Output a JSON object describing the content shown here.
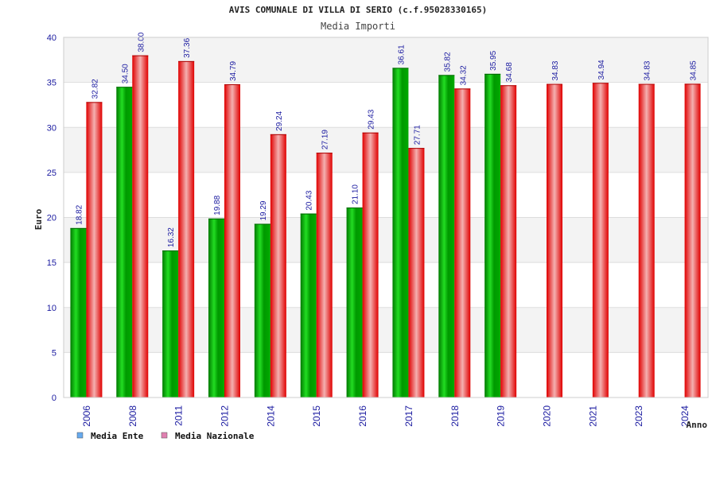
{
  "chart_data": {
    "type": "bar",
    "title": "AVIS COMUNALE DI VILLA DI SERIO (c.f.95028330165)",
    "subtitle": "Media Importi",
    "xlabel": "Anno",
    "ylabel": "Euro",
    "ylim": [
      0,
      40
    ],
    "yticks": [
      0,
      5,
      10,
      15,
      20,
      25,
      30,
      35,
      40
    ],
    "grid": true,
    "legend_position": "bottom-left",
    "categories": [
      "2006",
      "2008",
      "2011",
      "2012",
      "2014",
      "2015",
      "2016",
      "2017",
      "2018",
      "2019",
      "2020",
      "2021",
      "2023",
      "2024"
    ],
    "series": [
      {
        "name": "Media Ente",
        "legend_color": "#66aaee",
        "bar_color": "#00cc00",
        "values": [
          18.82,
          34.5,
          16.32,
          19.88,
          19.29,
          20.43,
          21.1,
          36.61,
          35.82,
          35.95,
          null,
          null,
          null,
          null
        ],
        "labels": [
          "18.82",
          "34.50",
          "16.32",
          "19.88",
          "19.29",
          "20.43",
          "21.10",
          "36.61",
          "35.82",
          "35.95",
          null,
          null,
          null,
          null
        ]
      },
      {
        "name": "Media Nazionale",
        "legend_color": "#e080b0",
        "bar_color": "#ee1111",
        "values": [
          32.82,
          38.0,
          37.36,
          34.79,
          29.24,
          27.19,
          29.43,
          27.71,
          34.32,
          34.68,
          34.83,
          34.94,
          34.83,
          34.85
        ],
        "labels": [
          "32.82",
          "38.00",
          "37.36",
          "34.79",
          "29.24",
          "27.19",
          "29.43",
          "27.71",
          "34.32",
          "34.68",
          "34.83",
          "34.94",
          "34.83",
          "34.85"
        ]
      }
    ]
  }
}
